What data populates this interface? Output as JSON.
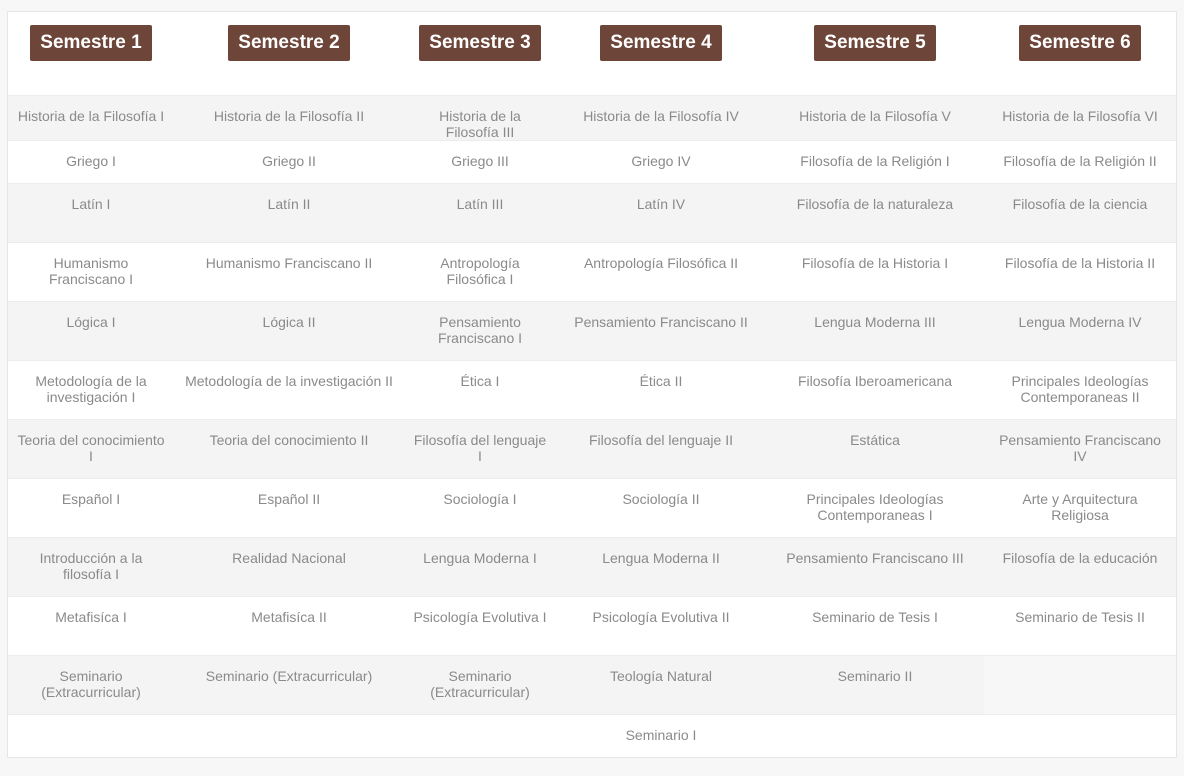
{
  "headers": [
    "Semestre 1",
    "Semestre 2",
    "Semestre 3",
    "Semestre 4",
    "Semestre 5",
    "Semestre 6"
  ],
  "header_color": "#6d4539",
  "rows": [
    [
      "Historia de la Filosofía I",
      "Historia de la Filosofía II",
      "Historia de la Filosofía III",
      "Historia de la Filosofía IV",
      "Historia de la Filosofía V",
      "Historia de la Filosofía VI"
    ],
    [
      "Griego I",
      "Griego II",
      "Griego III",
      "Griego IV",
      "Filosofía de la Religión I",
      "Filosofía de la Religión II"
    ],
    [
      "Latín I",
      "Latín II",
      "Latín III",
      "Latín IV",
      "Filosofía de la naturaleza",
      "Filosofía de la ciencia"
    ],
    [
      "Humanismo Franciscano I",
      "Humanismo Franciscano II",
      "Antropología Filosófica I",
      "Antropología Filosófica II",
      "Filosofía de la Historia I",
      "Filosofía de la Historia II"
    ],
    [
      "Lógica I",
      "Lógica II",
      "Pensamiento Franciscano I",
      "Pensamiento Franciscano II",
      "Lengua Moderna III",
      "Lengua Moderna IV"
    ],
    [
      "Metodología de la investigación I",
      "Metodología de la investigación II",
      "Ética I",
      "Ética II",
      "Filosofía Iberoamericana",
      "Principales Ideologías Contemporaneas II"
    ],
    [
      "Teoria del conocimiento I",
      "Teoria del conocimiento II",
      "Filosofía del lenguaje I",
      "Filosofía del lenguaje II",
      "Estática",
      "Pensamiento Franciscano IV"
    ],
    [
      "Español I",
      "Español II",
      "Sociología I",
      "Sociología II",
      "Principales Ideologías Contemporaneas I",
      "Arte y Arquitectura Religiosa"
    ],
    [
      "Introducción a la filosofía I",
      "Realidad Nacional",
      "Lengua Moderna I",
      "Lengua Moderna II",
      "Pensamiento Franciscano III",
      "Filosofía de la educación"
    ],
    [
      "Metafisíca I",
      "Metafisíca II",
      "Psicología Evolutiva I",
      "Psicología Evolutiva II",
      "Seminario de Tesis I",
      "Seminario de Tesis II"
    ],
    [
      "Seminario (Extracurricular)",
      "Seminario (Extracurricular)",
      "Seminario (Extracurricular)",
      "Teología Natural",
      "Seminario II",
      ""
    ],
    [
      "",
      "",
      "",
      "Seminario I",
      "",
      ""
    ]
  ]
}
